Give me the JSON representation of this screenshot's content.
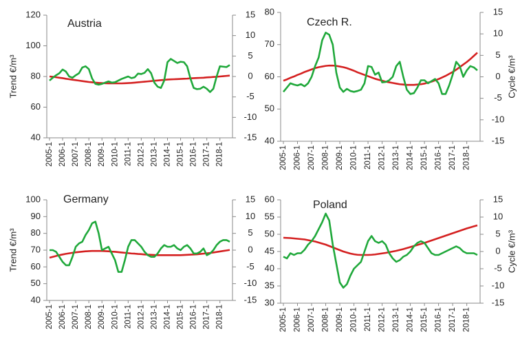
{
  "chart_data": [
    {
      "type": "line",
      "title": "Austria",
      "ylabel": "Trend €/m³",
      "categories": [
        "2005-1",
        null,
        null,
        null,
        "2006-1",
        null,
        null,
        null,
        "2007-1",
        null,
        null,
        null,
        "2008-1",
        null,
        null,
        null,
        "2009-1",
        null,
        null,
        null,
        "2010-1",
        null,
        null,
        null,
        "2011-1",
        null,
        null,
        null,
        "2012-1",
        null,
        null,
        null,
        "2013-1",
        null,
        null,
        null,
        "2014-1",
        null,
        null,
        null,
        "2015-1",
        null,
        null,
        null,
        "2016-1",
        null,
        null,
        null,
        "2017-1",
        null,
        null,
        null,
        "2018-1",
        null,
        null,
        null
      ],
      "ylim": [
        40,
        120
      ],
      "yticks": [
        40,
        60,
        80,
        100,
        120
      ],
      "y2lim": [
        -15,
        15
      ],
      "y2ticks": [
        -15,
        -10,
        -5,
        0,
        5,
        10,
        15
      ],
      "series": [
        {
          "color": "#d42020",
          "values": [
            80,
            79.8,
            79.5,
            79.2,
            78.9,
            78.5,
            78.2,
            77.9,
            77.6,
            77.3,
            77,
            76.7,
            76.4,
            76.2,
            76,
            75.8,
            75.7,
            75.6,
            75.5,
            75.5,
            75.5,
            75.5,
            75.5,
            75.6,
            75.7,
            75.8,
            76,
            76.2,
            76.4,
            76.6,
            76.8,
            77,
            77.2,
            77.4,
            77.6,
            77.8,
            78,
            78.1,
            78.2,
            78.3,
            78.4,
            78.5,
            78.6,
            78.8,
            78.9,
            79,
            79.1,
            79.2,
            79.4,
            79.5,
            79.7,
            79.8,
            80,
            80.2,
            80.4,
            80.6
          ]
        },
        {
          "color": "#1fa83a",
          "axis": "y2",
          "values": [
            -1,
            -0.3,
            0.3,
            0.8,
            1.7,
            1.2,
            0,
            -0.3,
            0.3,
            0.8,
            2.2,
            2.5,
            1.8,
            -0.5,
            -1.8,
            -2,
            -1.8,
            -1.5,
            -1.2,
            -1.5,
            -1.4,
            -1,
            -0.6,
            -0.3,
            0,
            -0.4,
            -0.2,
            0.7,
            0.6,
            0.9,
            1.8,
            0.8,
            -1.5,
            -2.5,
            -2.8,
            -1,
            3.5,
            4.3,
            3.8,
            3.3,
            3.6,
            3.5,
            2.5,
            -0.5,
            -2.8,
            -3.1,
            -3,
            -2.5,
            -3,
            -3.8,
            -3,
            0,
            2.5,
            2.4,
            2.3,
            2.8
          ]
        }
      ]
    },
    {
      "type": "line",
      "title": "Czech R.",
      "y2label": "Cycle €/m³",
      "categories": [
        "2005-1",
        null,
        null,
        null,
        "2006-1",
        null,
        null,
        null,
        "2007-1",
        null,
        null,
        null,
        "2008-1",
        null,
        null,
        null,
        "2009-1",
        null,
        null,
        null,
        "2010-1",
        null,
        null,
        null,
        "2011-1",
        null,
        null,
        null,
        "2012-1",
        null,
        null,
        null,
        "2013-1",
        null,
        null,
        null,
        "2014-1",
        null,
        null,
        null,
        "2015-1",
        null,
        null,
        null,
        "2016-1",
        null,
        null,
        null,
        "2017-1",
        null,
        null,
        null,
        "2018-1",
        null,
        null,
        null
      ],
      "ylim": [
        40,
        80
      ],
      "yticks": [
        40,
        50,
        60,
        70,
        80
      ],
      "y2lim": [
        -15,
        15
      ],
      "y2ticks": [
        -15,
        -10,
        -5,
        0,
        5,
        10,
        15
      ],
      "series": [
        {
          "color": "#d42020",
          "values": [
            58.8,
            59.2,
            59.7,
            60.1,
            60.6,
            61,
            61.5,
            61.9,
            62.3,
            62.7,
            63,
            63.2,
            63.4,
            63.5,
            63.5,
            63.4,
            63.2,
            63,
            62.7,
            62.3,
            61.9,
            61.4,
            61,
            60.6,
            60.2,
            59.8,
            59.4,
            59.1,
            58.8,
            58.5,
            58.3,
            58.1,
            57.9,
            57.7,
            57.6,
            57.5,
            57.5,
            57.5,
            57.6,
            57.7,
            57.9,
            58.2,
            58.5,
            58.9,
            59.3,
            59.8,
            60.3,
            60.9,
            61.5,
            62.2,
            63,
            63.8,
            64.6,
            65.5,
            66.5,
            67.5
          ]
        },
        {
          "color": "#1fa83a",
          "axis": "y2",
          "values": [
            -3.5,
            -2.5,
            -1.5,
            -1.8,
            -2,
            -1.7,
            -2.2,
            -1.5,
            0,
            2.5,
            4.5,
            8.5,
            10.3,
            9.8,
            7.5,
            1,
            -2.5,
            -3.5,
            -2.8,
            -3.3,
            -3.5,
            -3.3,
            -3,
            -1.5,
            2.5,
            2.3,
            0.5,
            1,
            -1.3,
            -1.2,
            -0.8,
            0,
            2.5,
            3.5,
            0,
            -3,
            -4,
            -3.8,
            -2.5,
            -0.8,
            -0.8,
            -1.5,
            -1,
            -0.5,
            -1.5,
            -4,
            -4,
            -2,
            0.5,
            3.5,
            2.5,
            0,
            1.5,
            2.5,
            2.2,
            1.5
          ]
        }
      ]
    },
    {
      "type": "line",
      "title": "Germany",
      "ylabel": "Trend €/m³",
      "categories": [
        "2005-1",
        null,
        null,
        null,
        "2006-1",
        null,
        null,
        null,
        "2007-1",
        null,
        null,
        null,
        "2008-1",
        null,
        null,
        null,
        "2009-1",
        null,
        null,
        null,
        "2010-1",
        null,
        null,
        null,
        "2011-1",
        null,
        null,
        null,
        "2012-1",
        null,
        null,
        null,
        "2013-1",
        null,
        null,
        null,
        "2014-1",
        null,
        null,
        null,
        "2015-1",
        null,
        null,
        null,
        "2016-1",
        null,
        null,
        null,
        "2017-1",
        null,
        null,
        null,
        "2018-1",
        null,
        null,
        null
      ],
      "ylim": [
        40,
        100
      ],
      "yticks": [
        40,
        50,
        60,
        70,
        80,
        90,
        100
      ],
      "y2lim": [
        -15,
        15
      ],
      "y2ticks": [
        -15,
        -10,
        -5,
        0,
        5,
        10,
        15
      ],
      "series": [
        {
          "color": "#d42020",
          "values": [
            65.5,
            66,
            66.5,
            67,
            67.4,
            67.8,
            68.1,
            68.4,
            68.7,
            68.9,
            69.1,
            69.3,
            69.4,
            69.5,
            69.5,
            69.5,
            69.5,
            69.4,
            69.3,
            69.1,
            69,
            68.8,
            68.6,
            68.4,
            68.2,
            68,
            67.9,
            67.7,
            67.6,
            67.4,
            67.3,
            67.2,
            67.1,
            67,
            67,
            67,
            67,
            67,
            67,
            67,
            67,
            67.1,
            67.2,
            67.3,
            67.4,
            67.5,
            67.7,
            67.9,
            68.1,
            68.3,
            68.6,
            68.9,
            69.2,
            69.5,
            69.8,
            70.1
          ]
        },
        {
          "color": "#1fa83a",
          "axis": "y2",
          "values": [
            0,
            0,
            -0.5,
            -2,
            -3.5,
            -4.5,
            -4.5,
            -2,
            1,
            2,
            2.5,
            4.5,
            6,
            8,
            8.5,
            5,
            0,
            0.5,
            1,
            -1,
            -3,
            -6.5,
            -6.5,
            -3,
            1,
            3,
            3,
            2,
            1,
            -0.5,
            -1.5,
            -2,
            -2,
            -1,
            0.5,
            1.5,
            1,
            1,
            1.5,
            0.5,
            0,
            1,
            1.5,
            0.5,
            -1,
            -1,
            -0.5,
            0.5,
            -1.5,
            -1,
            0,
            1.5,
            2.5,
            3,
            3,
            2.5
          ]
        }
      ]
    },
    {
      "type": "line",
      "title": "Poland",
      "y2label": "Cycle €/m³",
      "categories": [
        "2005-1",
        null,
        null,
        null,
        "2006-1",
        null,
        null,
        null,
        "2007-1",
        null,
        null,
        null,
        "2008-1",
        null,
        null,
        null,
        "2009-1",
        null,
        null,
        null,
        "2010-1",
        null,
        null,
        null,
        "2011-1",
        null,
        null,
        null,
        "2012-1",
        null,
        null,
        null,
        "2013-1",
        null,
        null,
        null,
        "2014-1",
        null,
        null,
        null,
        "2015-1",
        null,
        null,
        null,
        "2016-1",
        null,
        null,
        null,
        "2017-1",
        null,
        null,
        null,
        "2018-1",
        null,
        null,
        null
      ],
      "ylim": [
        30,
        60
      ],
      "yticks": [
        30,
        35,
        40,
        45,
        50,
        55,
        60
      ],
      "y2lim": [
        -15,
        15
      ],
      "y2ticks": [
        -15,
        -10,
        -5,
        0,
        5,
        10,
        15
      ],
      "series": [
        {
          "color": "#d42020",
          "values": [
            49,
            48.95,
            48.9,
            48.8,
            48.7,
            48.6,
            48.5,
            48.3,
            48.1,
            47.9,
            47.6,
            47.3,
            47,
            46.6,
            46.2,
            45.8,
            45.4,
            45,
            44.7,
            44.4,
            44.2,
            44.05,
            44,
            44,
            44,
            44.05,
            44.15,
            44.3,
            44.45,
            44.6,
            44.8,
            45,
            45.2,
            45.45,
            45.7,
            46,
            46.3,
            46.6,
            46.9,
            47.2,
            47.5,
            47.85,
            48.2,
            48.55,
            48.9,
            49.25,
            49.6,
            49.95,
            50.3,
            50.65,
            51,
            51.35,
            51.7,
            52,
            52.3,
            52.6
          ]
        },
        {
          "color": "#1fa83a",
          "axis": "y2",
          "values": [
            -1.5,
            -2,
            -0.5,
            -1,
            -0.5,
            -0.5,
            0.5,
            2,
            3,
            4.5,
            6.5,
            8.5,
            11,
            9,
            2,
            -3.5,
            -9,
            -10.5,
            -9.5,
            -7,
            -5,
            -4,
            -3,
            0,
            3,
            4.5,
            3,
            2.5,
            3,
            2,
            -0.5,
            -2,
            -3,
            -2.5,
            -1.5,
            -1,
            0,
            1.5,
            2.5,
            3,
            2.5,
            1,
            -0.5,
            -1,
            -1,
            -0.5,
            0,
            0.5,
            1,
            1.5,
            1,
            0,
            -0.5,
            -0.5,
            -0.5,
            -1
          ]
        }
      ]
    }
  ]
}
